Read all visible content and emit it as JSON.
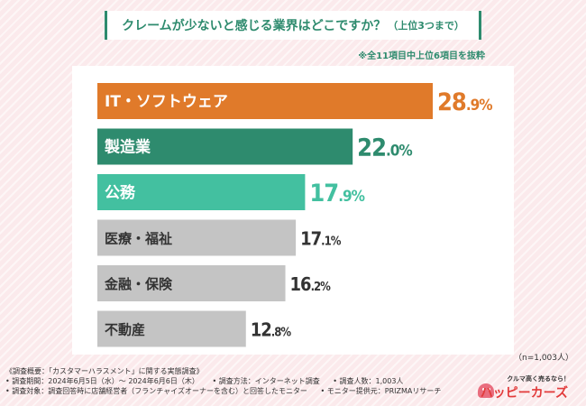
{
  "header": {
    "title": "クレームが少ないと感じる業界はどこですか？",
    "title_sub": "（上位3つまで）",
    "note": "※全11項目中上位6項目を抜粋"
  },
  "chart_data": {
    "type": "bar",
    "orientation": "horizontal",
    "title": "クレームが少ないと感じる業界はどこですか？（上位3つまで）",
    "categories": [
      "IT・ソフトウェア",
      "製造業",
      "公務",
      "医療・福祉",
      "金融・保険",
      "不動産"
    ],
    "values": [
      28.9,
      22.0,
      17.9,
      17.1,
      16.2,
      12.8
    ],
    "value_labels": [
      {
        "int": "28",
        "dec": ".9",
        "pct": "%"
      },
      {
        "int": "22",
        "dec": ".0",
        "pct": "%"
      },
      {
        "int": "17",
        "dec": ".9",
        "pct": "%"
      },
      {
        "int": "17",
        "dec": ".1",
        "pct": "%"
      },
      {
        "int": "16",
        "dec": ".2",
        "pct": "%"
      },
      {
        "int": "12",
        "dec": ".8",
        "pct": "%"
      }
    ],
    "unit": "%",
    "xlim": [
      0,
      35
    ],
    "colors": [
      "#e07a2a",
      "#2e8b6e",
      "#43c0a0",
      "#c4c4c4",
      "#c4c4c4",
      "#c4c4c4"
    ],
    "label_colors": [
      "#ffffff",
      "#ffffff",
      "#ffffff",
      "#333333",
      "#333333",
      "#333333"
    ],
    "value_colors": [
      "#e07a2a",
      "#2e8b6e",
      "#43c0a0",
      "#333333",
      "#333333",
      "#333333"
    ]
  },
  "sample_size": "（n=1,003人）",
  "footer": {
    "line1": "《調査概要：「カスタマーハラスメント」に関する実態調査》",
    "period": "• 調査期間：2024年6月5日（水）～ 2024年6月6日（木）",
    "method": "• 調査方法：インターネット調査",
    "count": "• 調査人数：1,003人",
    "target": "• 調査対象：調査回答時に店舗経営者（フランチャイズオーナーを含む）と回答したモニター",
    "provider": "• モニター提供元：PRIZMAリサーチ"
  },
  "logo": {
    "tagline": "クルマ高く売るなら！",
    "name": "ハッピーカーズ"
  }
}
